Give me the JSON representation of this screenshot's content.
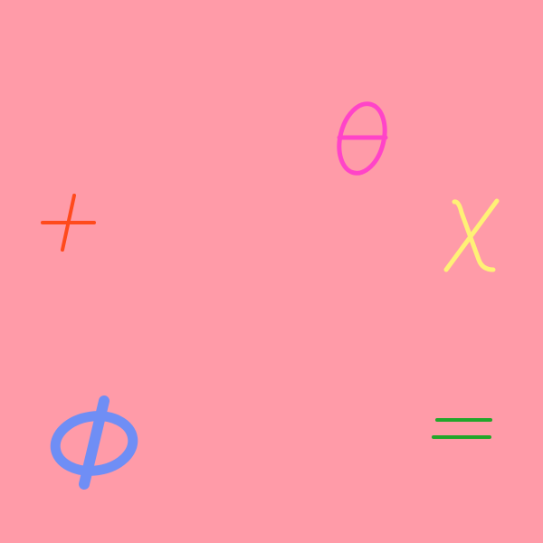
{
  "symbols": [
    {
      "name": "plus",
      "glyph": "+",
      "color": "#ff4a1c"
    },
    {
      "name": "theta",
      "glyph": "θ",
      "color": "#ff44c8"
    },
    {
      "name": "chi",
      "glyph": "χ",
      "color": "#fff176"
    },
    {
      "name": "phi",
      "glyph": "Φ",
      "color": "#6f8ef5"
    },
    {
      "name": "equals",
      "glyph": "=",
      "color": "#22a62a"
    }
  ],
  "background": "#ff9ba8"
}
